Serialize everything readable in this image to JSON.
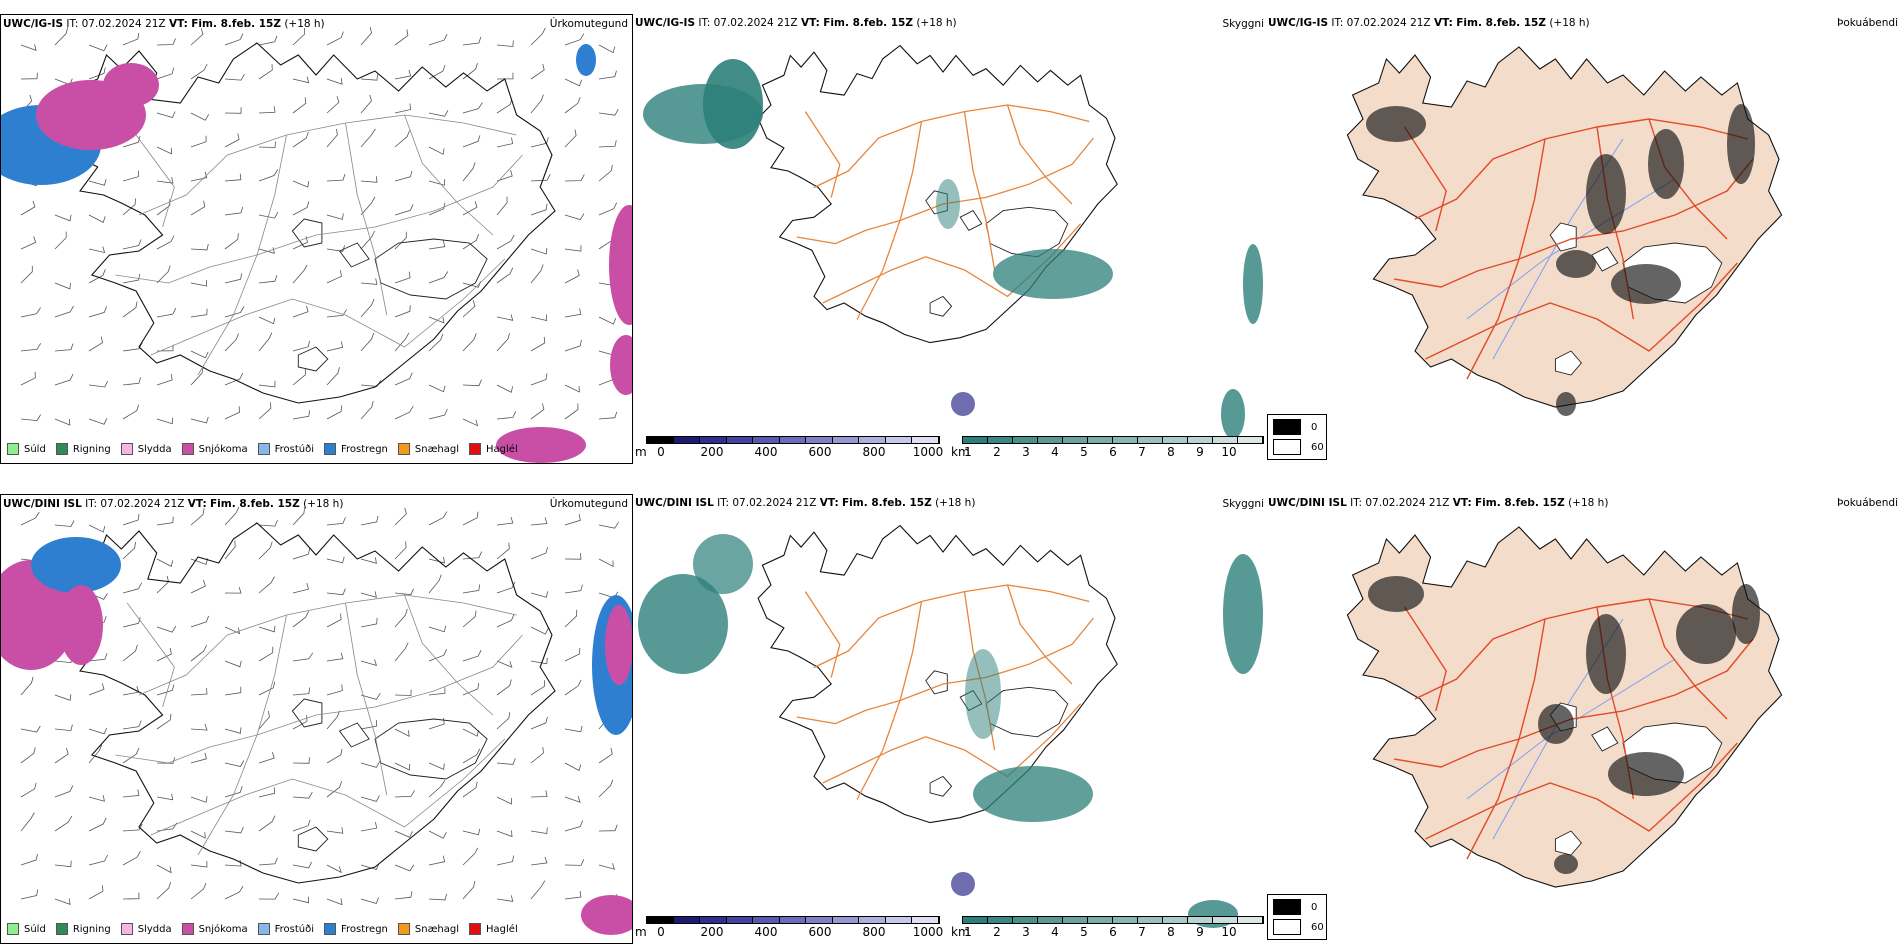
{
  "rows": [
    {
      "model": "UWC/IG-IS",
      "it_label": "IT:",
      "it_value": "07.02.2024 21Z",
      "vt_label": "VT:",
      "vt_value": "Fim. 8.feb. 15Z",
      "lead": "(+18 h)"
    },
    {
      "model": "UWC/DINI ISL",
      "it_label": "IT:",
      "it_value": "07.02.2024 21Z",
      "vt_label": "VT:",
      "vt_value": "Fim. 8.feb. 15Z",
      "lead": "(+18 h)"
    }
  ],
  "panel_names": {
    "precip": "Úrkomutegund",
    "cloud": "Skyggni",
    "fog": "Þokuábendi"
  },
  "precip_legend": [
    {
      "label": "Súld",
      "color": "#90ee90"
    },
    {
      "label": "Rigning",
      "color": "#2e8b57"
    },
    {
      "label": "Slydda",
      "color": "#f4b6e0"
    },
    {
      "label": "Snjókoma",
      "color": "#c94fa6"
    },
    {
      "label": "Frostúði",
      "color": "#87b8ec"
    },
    {
      "label": "Frostregn",
      "color": "#2f7fd0"
    },
    {
      "label": "Snæhagl",
      "color": "#f39a1c"
    },
    {
      "label": "Haglél",
      "color": "#e01010"
    }
  ],
  "colorbar_m": {
    "unit": "m",
    "ticks": [
      "0",
      "200",
      "400",
      "600",
      "800",
      "1000"
    ],
    "colors": [
      "#000000",
      "#1a1a70",
      "#2f2f8f",
      "#4444a0",
      "#5858ae",
      "#6c6cbc",
      "#8080c8",
      "#9898d4",
      "#b0b0e0",
      "#c8c8ea",
      "#e0e0f4"
    ]
  },
  "colorbar_km": {
    "unit": "km",
    "ticks": [
      "1",
      "2",
      "3",
      "4",
      "5",
      "6",
      "7",
      "8",
      "9",
      "10"
    ],
    "colors": [
      "#2c7f7a",
      "#3a8883",
      "#4a918c",
      "#5a9a95",
      "#6aa39f",
      "#7aaca8",
      "#8ab6b2",
      "#9ac0bc",
      "#aacac7",
      "#bad4d1",
      "#cadedc",
      "#dbe8e6"
    ]
  },
  "fog_legend": [
    {
      "label": "0",
      "color": "#000000"
    },
    {
      "label": "60",
      "color": "#ffffff"
    }
  ],
  "colors": {
    "land_fog": "#f3dcca",
    "roads": "#e8853c",
    "roads_fog": "#e24a28",
    "rivers": "#7f9cf5",
    "snow": "#c94fa6",
    "freezing": "#2f7fd0",
    "visibility": "#2c7f7a"
  }
}
